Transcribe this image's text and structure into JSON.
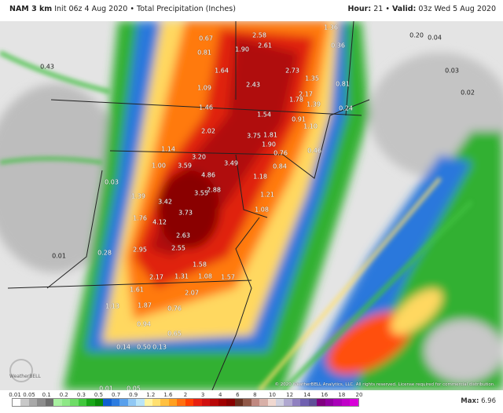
{
  "header": {
    "model": "NAM 3 km",
    "init": "Init 06z 4 Aug 2020",
    "separator": "•",
    "product": "Total Precipitation (Inches)",
    "hour_label": "Hour:",
    "hour": "21",
    "valid_label": "Valid:",
    "valid": "03z Wed 5 Aug 2020"
  },
  "map": {
    "region": "Mid-Atlantic / Northeast US",
    "logo_text": "WeatherBELL",
    "copyright": "© 2020 WeatherBELL Analytics, LLC. All rights reserved. License required for commercial distribution.",
    "value_labels": [
      "2.58",
      "2.61",
      "1.90",
      "0.81",
      "1.64",
      "2.73",
      "1.35",
      "2.43",
      "1.09",
      "2.17",
      "1.78",
      "1.39",
      "1.46",
      "1.54",
      "0.91",
      "1.10",
      "2.02",
      "3.75",
      "1.81",
      "1.90",
      "0.76",
      "0.46",
      "3.20",
      "3.59",
      "3.49",
      "4.86",
      "1.00",
      "0.84",
      "1.18",
      "3.55",
      "2.88",
      "1.21",
      "3.42",
      "1.39",
      "3.73",
      "1.08",
      "1.76",
      "4.12",
      "2.63",
      "2.95",
      "2.55",
      "1.58",
      "1.08",
      "1.57",
      "2.17",
      "1.31",
      "1.61",
      "2.07",
      "1.87",
      "1.13",
      "0.76",
      "0.94",
      "0.65",
      "0.14",
      "0.50",
      "0.13",
      "0.28",
      "0.03",
      "1.14",
      "0.20",
      "0.36",
      "0.81",
      "0.24",
      "0.43",
      "0.01",
      "0.01",
      "0.05",
      "1.36",
      "0.04",
      "0.03",
      "0.02",
      "0.67"
    ]
  },
  "colorbar": {
    "ticks": [
      "0.01",
      "0.05",
      "0.1",
      "0.2",
      "0.3",
      "0.5",
      "0.7",
      "0.9",
      "1.2",
      "1.6",
      "2",
      "3",
      "4",
      "6",
      "8",
      "10",
      "12",
      "14",
      "16",
      "18",
      "20"
    ],
    "colors": [
      "#ffffff",
      "#c8c8c8",
      "#a8a8a8",
      "#8c8c8c",
      "#6e6e6e",
      "#a8f0a0",
      "#8ee886",
      "#6edc66",
      "#40c83c",
      "#18a818",
      "#0a8c0a",
      "#1060d0",
      "#2c7ce0",
      "#58a0ec",
      "#90c8f4",
      "#b8e4f8",
      "#fff4a0",
      "#ffe070",
      "#ffc040",
      "#ffa020",
      "#ff7010",
      "#ff4000",
      "#e82010",
      "#d01010",
      "#b80808",
      "#a00000",
      "#880000",
      "#683020",
      "#905848",
      "#c08880",
      "#d8b0a8",
      "#f0d8d0",
      "#d0d0e0",
      "#b0a8d0",
      "#9080c0",
      "#7060b0",
      "#605098",
      "#800080",
      "#9000a0",
      "#a800b8",
      "#c000c8",
      "#d800d8"
    ],
    "max_label": "Max:",
    "max_value": "6.96"
  }
}
